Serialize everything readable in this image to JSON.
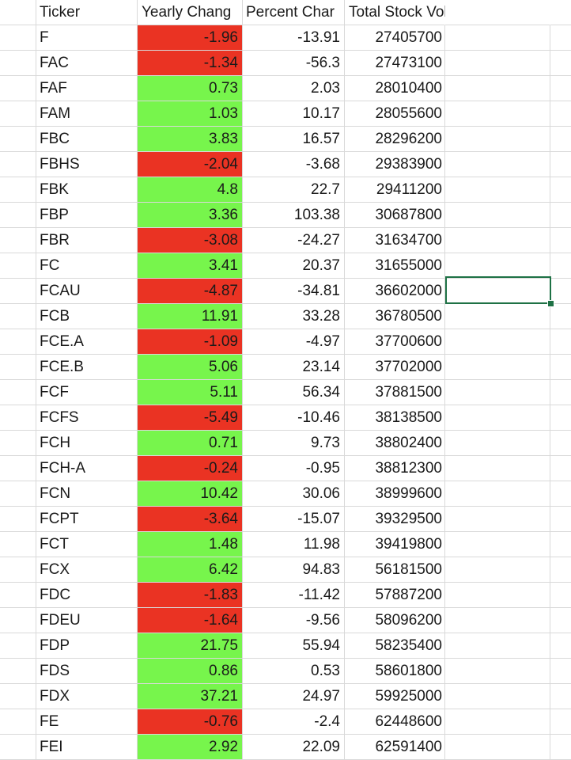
{
  "headers": {
    "ticker": "Ticker",
    "yearly_change": "Yearly Chang",
    "percent_change": "Percent Char",
    "total_volume": "Total Stock Volume"
  },
  "colors": {
    "negative_fill": "#ea3323",
    "positive_fill": "#77f54c",
    "selection_border": "#1e7145"
  },
  "selected_cell": {
    "column": "E",
    "row_label": "FCAU"
  },
  "rows": [
    {
      "ticker": "F",
      "yearly_change": "-1.96",
      "percent_change": "-13.91",
      "total_volume": "27405700",
      "status": "neg"
    },
    {
      "ticker": "FAC",
      "yearly_change": "-1.34",
      "percent_change": "-56.3",
      "total_volume": "27473100",
      "status": "neg"
    },
    {
      "ticker": "FAF",
      "yearly_change": "0.73",
      "percent_change": "2.03",
      "total_volume": "28010400",
      "status": "pos"
    },
    {
      "ticker": "FAM",
      "yearly_change": "1.03",
      "percent_change": "10.17",
      "total_volume": "28055600",
      "status": "pos"
    },
    {
      "ticker": "FBC",
      "yearly_change": "3.83",
      "percent_change": "16.57",
      "total_volume": "28296200",
      "status": "pos"
    },
    {
      "ticker": "FBHS",
      "yearly_change": "-2.04",
      "percent_change": "-3.68",
      "total_volume": "29383900",
      "status": "neg"
    },
    {
      "ticker": "FBK",
      "yearly_change": "4.8",
      "percent_change": "22.7",
      "total_volume": "29411200",
      "status": "pos"
    },
    {
      "ticker": "FBP",
      "yearly_change": "3.36",
      "percent_change": "103.38",
      "total_volume": "30687800",
      "status": "pos"
    },
    {
      "ticker": "FBR",
      "yearly_change": "-3.08",
      "percent_change": "-24.27",
      "total_volume": "31634700",
      "status": "neg"
    },
    {
      "ticker": "FC",
      "yearly_change": "3.41",
      "percent_change": "20.37",
      "total_volume": "31655000",
      "status": "pos"
    },
    {
      "ticker": "FCAU",
      "yearly_change": "-4.87",
      "percent_change": "-34.81",
      "total_volume": "36602000",
      "status": "neg"
    },
    {
      "ticker": "FCB",
      "yearly_change": "11.91",
      "percent_change": "33.28",
      "total_volume": "36780500",
      "status": "pos"
    },
    {
      "ticker": "FCE.A",
      "yearly_change": "-1.09",
      "percent_change": "-4.97",
      "total_volume": "37700600",
      "status": "neg"
    },
    {
      "ticker": "FCE.B",
      "yearly_change": "5.06",
      "percent_change": "23.14",
      "total_volume": "37702000",
      "status": "pos"
    },
    {
      "ticker": "FCF",
      "yearly_change": "5.11",
      "percent_change": "56.34",
      "total_volume": "37881500",
      "status": "pos"
    },
    {
      "ticker": "FCFS",
      "yearly_change": "-5.49",
      "percent_change": "-10.46",
      "total_volume": "38138500",
      "status": "neg"
    },
    {
      "ticker": "FCH",
      "yearly_change": "0.71",
      "percent_change": "9.73",
      "total_volume": "38802400",
      "status": "pos"
    },
    {
      "ticker": "FCH-A",
      "yearly_change": "-0.24",
      "percent_change": "-0.95",
      "total_volume": "38812300",
      "status": "neg"
    },
    {
      "ticker": "FCN",
      "yearly_change": "10.42",
      "percent_change": "30.06",
      "total_volume": "38999600",
      "status": "pos"
    },
    {
      "ticker": "FCPT",
      "yearly_change": "-3.64",
      "percent_change": "-15.07",
      "total_volume": "39329500",
      "status": "neg"
    },
    {
      "ticker": "FCT",
      "yearly_change": "1.48",
      "percent_change": "11.98",
      "total_volume": "39419800",
      "status": "pos"
    },
    {
      "ticker": "FCX",
      "yearly_change": "6.42",
      "percent_change": "94.83",
      "total_volume": "56181500",
      "status": "pos"
    },
    {
      "ticker": "FDC",
      "yearly_change": "-1.83",
      "percent_change": "-11.42",
      "total_volume": "57887200",
      "status": "neg"
    },
    {
      "ticker": "FDEU",
      "yearly_change": "-1.64",
      "percent_change": "-9.56",
      "total_volume": "58096200",
      "status": "neg"
    },
    {
      "ticker": "FDP",
      "yearly_change": "21.75",
      "percent_change": "55.94",
      "total_volume": "58235400",
      "status": "pos"
    },
    {
      "ticker": "FDS",
      "yearly_change": "0.86",
      "percent_change": "0.53",
      "total_volume": "58601800",
      "status": "pos"
    },
    {
      "ticker": "FDX",
      "yearly_change": "37.21",
      "percent_change": "24.97",
      "total_volume": "59925000",
      "status": "pos"
    },
    {
      "ticker": "FE",
      "yearly_change": "-0.76",
      "percent_change": "-2.4",
      "total_volume": "62448600",
      "status": "neg"
    },
    {
      "ticker": "FEI",
      "yearly_change": "2.92",
      "percent_change": "22.09",
      "total_volume": "62591400",
      "status": "pos"
    }
  ]
}
